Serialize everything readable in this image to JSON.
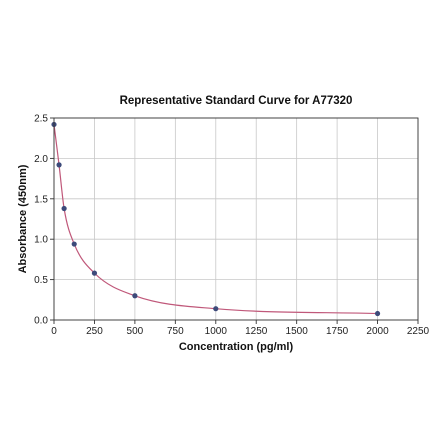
{
  "chart_data": {
    "type": "scatter",
    "title": "Representative Standard Curve for A77320",
    "xlabel": "Concentration (pg/ml)",
    "ylabel": "Absorbance (450nm)",
    "xlim": [
      0,
      2250
    ],
    "ylim": [
      0,
      2.5
    ],
    "xticks": [
      "0",
      "250",
      "500",
      "750",
      "1000",
      "1250",
      "1500",
      "1750",
      "2000",
      "2250"
    ],
    "yticks": [
      "0.0",
      "0.5",
      "1.0",
      "1.5",
      "2.0",
      "2.5"
    ],
    "grid": true,
    "point_color": "#3d4a7a",
    "curve_color": "#c0587a",
    "series": [
      {
        "x": [
          0,
          31.25,
          62.5,
          125,
          250,
          500,
          1000,
          2000
        ],
        "y": [
          2.42,
          1.92,
          1.38,
          0.94,
          0.58,
          0.3,
          0.14,
          0.08
        ]
      }
    ]
  }
}
